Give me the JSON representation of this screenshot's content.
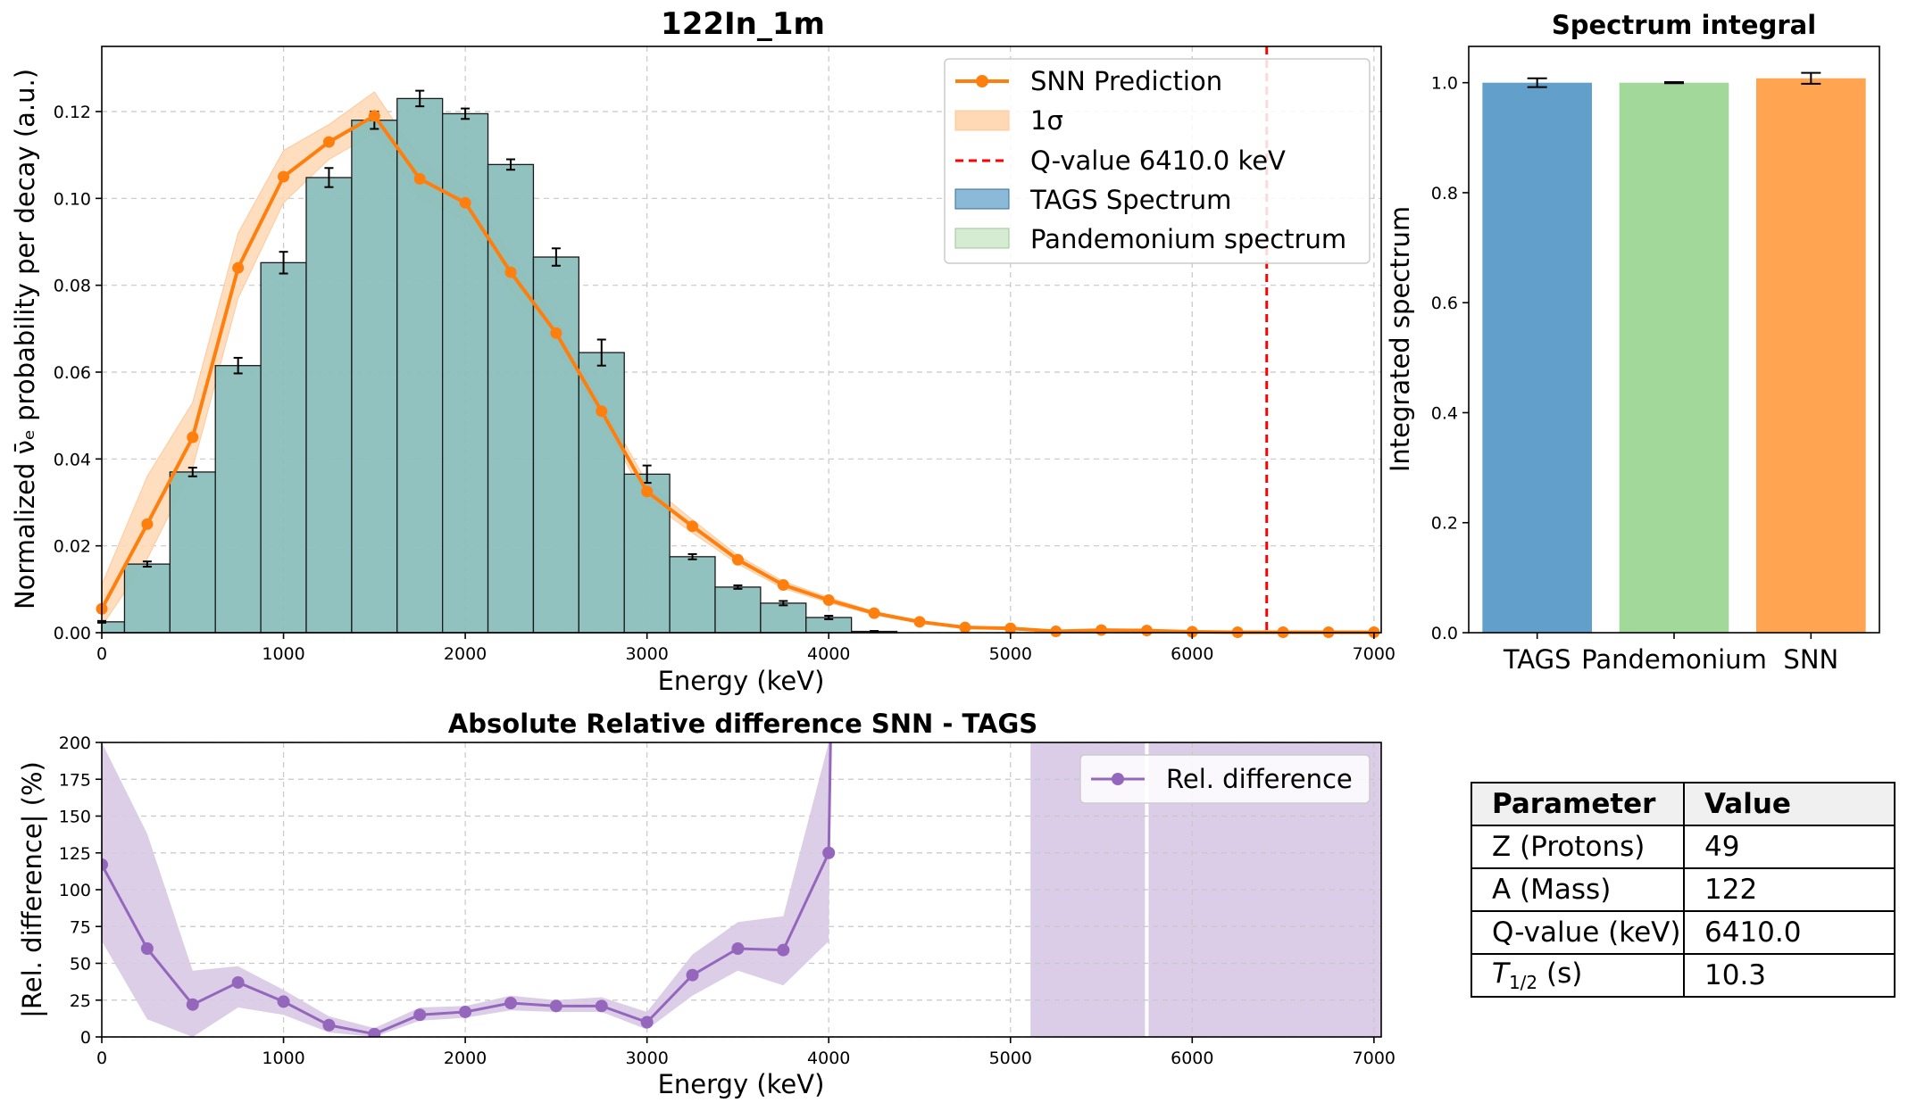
{
  "colors": {
    "snn": "#ff7f0e",
    "band": "#ffd8b5",
    "tags_fill": "#8bbfbd",
    "tags_legend": "#8bbad9",
    "pandemonium_legend": "#d6ecd2",
    "qvalue": "#ff0000",
    "rel": "#9467bd",
    "rel_band": "#d9c9e6",
    "bar_tags": "#629fca",
    "bar_pandemonium": "#a2d99a",
    "bar_snn": "#ffa552"
  },
  "chart_data": [
    {
      "id": "spectrum",
      "type": "bar+line",
      "title": "122In_1m",
      "xlabel": "Energy (keV)",
      "ylabel": "Normalized ν̄ₑ probability per decay (a.u.)",
      "xlim": [
        0,
        7040
      ],
      "ylim": [
        0,
        0.135
      ],
      "xticks": [
        0,
        1000,
        2000,
        3000,
        4000,
        5000,
        6000,
        7000
      ],
      "yticks": [
        0.0,
        0.02,
        0.04,
        0.06,
        0.08,
        0.1,
        0.12
      ],
      "ytick_labels": [
        "0.00",
        "0.02",
        "0.04",
        "0.06",
        "0.08",
        "0.10",
        "0.12"
      ],
      "grid": true,
      "legend_position": "upper right",
      "legend": [
        "SNN Prediction",
        "1σ",
        "Q-value 6410.0 keV",
        "TAGS Spectrum",
        "Pandemonium spectrum"
      ],
      "tags_bins": {
        "width": 250,
        "centers": [
          0,
          250,
          500,
          750,
          1000,
          1250,
          1500,
          1750,
          2000,
          2250,
          2500,
          2750,
          3000,
          3250,
          3500,
          3750,
          4000,
          4250
        ],
        "values": [
          0.0025,
          0.0158,
          0.037,
          0.0615,
          0.0852,
          0.1048,
          0.118,
          0.123,
          0.1195,
          0.1078,
          0.0865,
          0.0645,
          0.0365,
          0.0175,
          0.0105,
          0.0068,
          0.0035,
          0.0003
        ],
        "errors": [
          0.0002,
          0.0006,
          0.001,
          0.0018,
          0.0025,
          0.0022,
          0.002,
          0.0018,
          0.0012,
          0.0012,
          0.002,
          0.003,
          0.002,
          0.0006,
          0.0004,
          0.0005,
          0.0004,
          0.0001
        ]
      },
      "snn_prediction": {
        "x": [
          0,
          250,
          500,
          750,
          1000,
          1250,
          1500,
          1750,
          2000,
          2250,
          2500,
          2750,
          3000,
          3250,
          3500,
          3750,
          4000,
          4250,
          4500,
          4750,
          5000,
          5250,
          5500,
          5750,
          6000,
          6250,
          6500,
          6750,
          7000
        ],
        "y": [
          0.0055,
          0.025,
          0.045,
          0.084,
          0.105,
          0.113,
          0.119,
          0.1045,
          0.099,
          0.083,
          0.069,
          0.051,
          0.0325,
          0.0245,
          0.0168,
          0.011,
          0.0075,
          0.0045,
          0.0025,
          0.0012,
          0.001,
          0.0003,
          0.0006,
          0.0005,
          0.0002,
          0.0001,
          0.0001,
          0.0001,
          0.0001
        ],
        "lower": [
          0.0015,
          0.017,
          0.038,
          0.077,
          0.099,
          0.109,
          0.115,
          0.1,
          0.095,
          0.079,
          0.066,
          0.049,
          0.0305,
          0.023,
          0.0158,
          0.0102,
          0.0069,
          0.0041,
          0.0022,
          0.001,
          0.0008,
          0.0002,
          0.0004,
          0.0003,
          0.0001,
          0.0,
          0.0,
          0.0,
          0.0
        ],
        "upper": [
          0.011,
          0.036,
          0.053,
          0.092,
          0.111,
          0.117,
          0.1245,
          0.109,
          0.103,
          0.087,
          0.072,
          0.053,
          0.0345,
          0.026,
          0.0178,
          0.0118,
          0.0081,
          0.0049,
          0.0028,
          0.0014,
          0.0012,
          0.0004,
          0.0008,
          0.0007,
          0.0003,
          0.0002,
          0.0002,
          0.0002,
          0.0002
        ]
      },
      "q_value_keV": 6410.0
    },
    {
      "id": "integral",
      "type": "bar",
      "title": "Spectrum integral",
      "ylabel": "Integrated spectrum",
      "categories": [
        "TAGS",
        "Pandemonium",
        "SNN"
      ],
      "values": [
        1.0,
        1.0,
        1.008
      ],
      "errors": [
        0.008,
        0.001,
        0.01
      ],
      "ylim": [
        0,
        1.066
      ],
      "yticks": [
        0.0,
        0.2,
        0.4,
        0.6,
        0.8,
        1.0
      ],
      "ytick_labels": [
        "0.0",
        "0.2",
        "0.4",
        "0.6",
        "0.8",
        "1.0"
      ],
      "grid": false
    },
    {
      "id": "reldiff",
      "type": "line",
      "title": "Absolute Relative difference SNN - TAGS",
      "xlabel": "Energy (keV)",
      "ylabel": "|Rel. difference| (%)",
      "xlim": [
        0,
        7040
      ],
      "ylim": [
        0,
        200
      ],
      "xticks": [
        0,
        1000,
        2000,
        3000,
        4000,
        5000,
        6000,
        7000
      ],
      "yticks": [
        0,
        25,
        50,
        75,
        100,
        125,
        150,
        175,
        200
      ],
      "grid": true,
      "legend_position": "upper right",
      "legend": [
        "Rel. difference"
      ],
      "x": [
        0,
        250,
        500,
        750,
        1000,
        1250,
        1500,
        1750,
        2000,
        2250,
        2500,
        2750,
        3000,
        3250,
        3500,
        3750,
        4000,
        4010
      ],
      "y": [
        117,
        60,
        22,
        37,
        24,
        8,
        2,
        15,
        17,
        23,
        21,
        21,
        10,
        42,
        60,
        59,
        125,
        200
      ],
      "lower": [
        65,
        12,
        0,
        20,
        15,
        3,
        0,
        11,
        13,
        18,
        17,
        17,
        5,
        28,
        45,
        35,
        65,
        200
      ],
      "upper": [
        200,
        138,
        45,
        48,
        32,
        14,
        6,
        20,
        21,
        28,
        25,
        27,
        17,
        56,
        78,
        82,
        200,
        200
      ],
      "shaded_regions": [
        [
          5110,
          5740
        ],
        [
          5760,
          7040
        ]
      ]
    }
  ],
  "parameter_table": {
    "headers": [
      "Parameter",
      "Value"
    ],
    "rows": [
      {
        "name": "Z (Protons)",
        "value": "49"
      },
      {
        "name": "A (Mass)",
        "value": "122"
      },
      {
        "name": "Q-value (keV)",
        "value": "6410.0"
      },
      {
        "name_prefix": "T",
        "name_sub": "1/2",
        "name_suffix": " (s)",
        "value": "10.3"
      }
    ]
  }
}
